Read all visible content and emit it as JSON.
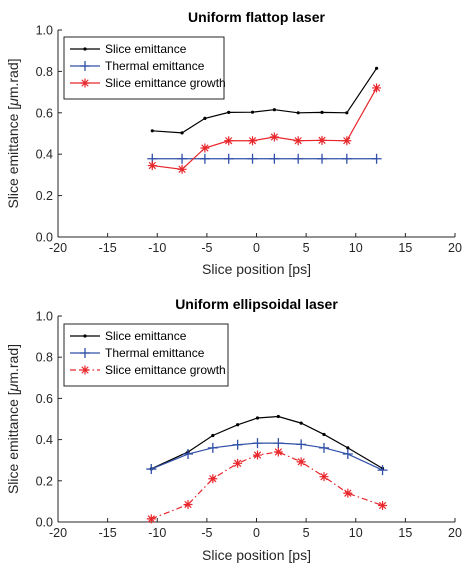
{
  "chart_data": [
    {
      "type": "line",
      "title": "Uniform flattop laser",
      "xlabel": "Slice position [ps]",
      "ylabel_prefix": "Slice emittance [",
      "ylabel_mu": "μ",
      "ylabel_suffix": "m.rad]",
      "xlim": [
        -20,
        20
      ],
      "ylim": [
        0,
        1.0
      ],
      "xticks": [
        -20,
        -15,
        -10,
        -5,
        0,
        5,
        10,
        15,
        20
      ],
      "yticks": [
        0,
        0.2,
        0.4,
        0.6,
        0.8,
        1.0
      ],
      "xtick_labels": [
        "-20",
        "-15",
        "-10",
        "-5",
        "0",
        "5",
        "10",
        "15",
        "20"
      ],
      "ytick_labels": [
        "0.0",
        "0.2",
        "0.4",
        "0.6",
        "0.8",
        "1.0"
      ],
      "grid": false,
      "legend_position": "top-left",
      "series": [
        {
          "name": "Slice emittance",
          "color": "#000000",
          "marker": "dot",
          "dash": "solid",
          "x": [
            -10.5,
            -7.5,
            -5.2,
            -2.8,
            -0.4,
            1.8,
            4.2,
            6.6,
            9.1,
            12.1
          ],
          "y": [
            0.513,
            0.503,
            0.573,
            0.602,
            0.603,
            0.615,
            0.6,
            0.602,
            0.6,
            0.815
          ]
        },
        {
          "name": "Thermal emittance",
          "color": "#3050a8",
          "marker": "plus",
          "dash": "solid",
          "x": [
            -10.5,
            -7.5,
            -5.2,
            -2.8,
            -0.4,
            1.8,
            4.2,
            6.6,
            9.1,
            12.1
          ],
          "y": [
            0.378,
            0.378,
            0.378,
            0.378,
            0.378,
            0.378,
            0.378,
            0.378,
            0.378,
            0.378
          ]
        },
        {
          "name": "Slice emittance growth",
          "color": "#e8262b",
          "marker": "asterisk",
          "dash": "solid",
          "x": [
            -10.5,
            -7.5,
            -5.2,
            -2.8,
            -0.4,
            1.8,
            4.2,
            6.6,
            9.1,
            12.1
          ],
          "y": [
            0.345,
            0.327,
            0.43,
            0.465,
            0.465,
            0.483,
            0.465,
            0.467,
            0.465,
            0.72
          ]
        }
      ]
    },
    {
      "type": "line",
      "title": "Uniform ellipsoidal laser",
      "xlabel": "Slice position [ps]",
      "ylabel_prefix": "Slice emittance [",
      "ylabel_mu": "μ",
      "ylabel_suffix": "m.rad]",
      "xlim": [
        -20,
        20
      ],
      "ylim": [
        0,
        1.0
      ],
      "xticks": [
        -20,
        -15,
        -10,
        -5,
        0,
        5,
        10,
        15,
        20
      ],
      "yticks": [
        0,
        0.2,
        0.4,
        0.6,
        0.8,
        1.0
      ],
      "xtick_labels": [
        "-20",
        "-15",
        "-10",
        "-5",
        "0",
        "5",
        "10",
        "15",
        "20"
      ],
      "ytick_labels": [
        "0.0",
        "0.2",
        "0.4",
        "0.6",
        "0.8",
        "1.0"
      ],
      "grid": false,
      "legend_position": "top-left",
      "series": [
        {
          "name": "Slice emittance",
          "color": "#000000",
          "marker": "dot",
          "dash": "solid",
          "x": [
            -10.6,
            -6.9,
            -4.4,
            -1.9,
            0.1,
            2.2,
            4.5,
            6.8,
            9.2,
            12.7
          ],
          "y": [
            0.258,
            0.34,
            0.42,
            0.472,
            0.505,
            0.512,
            0.48,
            0.425,
            0.36,
            0.26
          ]
        },
        {
          "name": "Thermal emittance",
          "color": "#3050a8",
          "marker": "plus",
          "dash": "solid",
          "x": [
            -10.6,
            -6.9,
            -4.4,
            -1.9,
            0.1,
            2.2,
            4.5,
            6.8,
            9.2,
            12.7
          ],
          "y": [
            0.257,
            0.33,
            0.36,
            0.375,
            0.383,
            0.383,
            0.377,
            0.36,
            0.33,
            0.252
          ]
        },
        {
          "name": "Slice emittance growth",
          "color": "#e8262b",
          "marker": "asterisk",
          "dash": "dashdot",
          "x": [
            -10.6,
            -6.9,
            -4.4,
            -1.9,
            0.1,
            2.2,
            4.5,
            6.8,
            9.2,
            12.7
          ],
          "y": [
            0.015,
            0.085,
            0.21,
            0.285,
            0.325,
            0.34,
            0.292,
            0.22,
            0.14,
            0.08
          ]
        }
      ]
    }
  ]
}
